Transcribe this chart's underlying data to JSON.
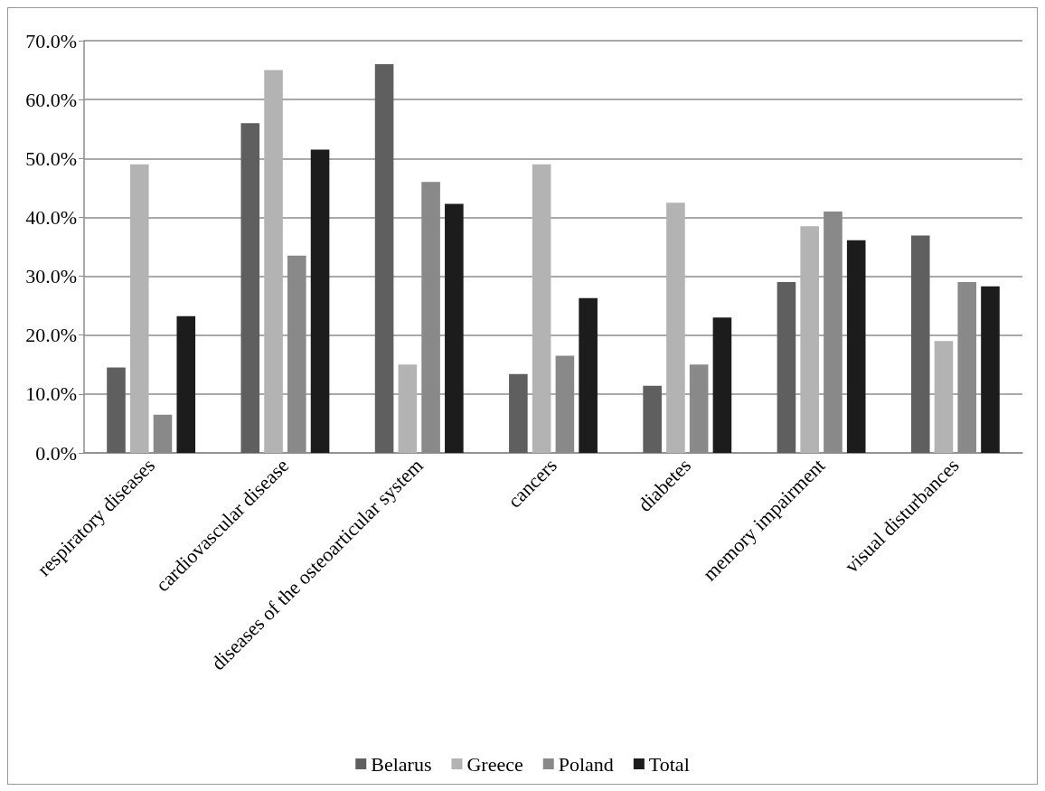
{
  "chart_data": {
    "type": "bar",
    "categories": [
      "respiratory diseases",
      "cardiovascular disease",
      "diseases of the osteoarticular system",
      "cancers",
      "diabetes",
      "memory impairment",
      "visual disturbances"
    ],
    "series": [
      {
        "name": "Belarus",
        "color": "#5f5f5f",
        "values": [
          14.5,
          56,
          66,
          13.4,
          11.4,
          29,
          36.9
        ]
      },
      {
        "name": "Greece",
        "color": "#b3b3b3",
        "values": [
          49,
          65,
          15,
          49,
          42.5,
          38.5,
          19
        ]
      },
      {
        "name": "Poland",
        "color": "#898989",
        "values": [
          6.5,
          33.5,
          46,
          16.5,
          15,
          41,
          29
        ]
      },
      {
        "name": "Total",
        "color": "#1c1c1c",
        "values": [
          23.2,
          51.5,
          42.3,
          26.3,
          23,
          36.1,
          28.3
        ]
      }
    ],
    "ylim": [
      0,
      70
    ],
    "yticks": [
      {
        "value": 0,
        "label": "0.0%"
      },
      {
        "value": 10,
        "label": "10.0%"
      },
      {
        "value": 20,
        "label": "20.0%"
      },
      {
        "value": 30,
        "label": "30.0%"
      },
      {
        "value": 40,
        "label": "40.0%"
      },
      {
        "value": 50,
        "label": "50.0%"
      },
      {
        "value": 60,
        "label": "60.0%"
      },
      {
        "value": 70,
        "label": "70.0%"
      }
    ],
    "grid": "y",
    "legend": "bottom"
  }
}
